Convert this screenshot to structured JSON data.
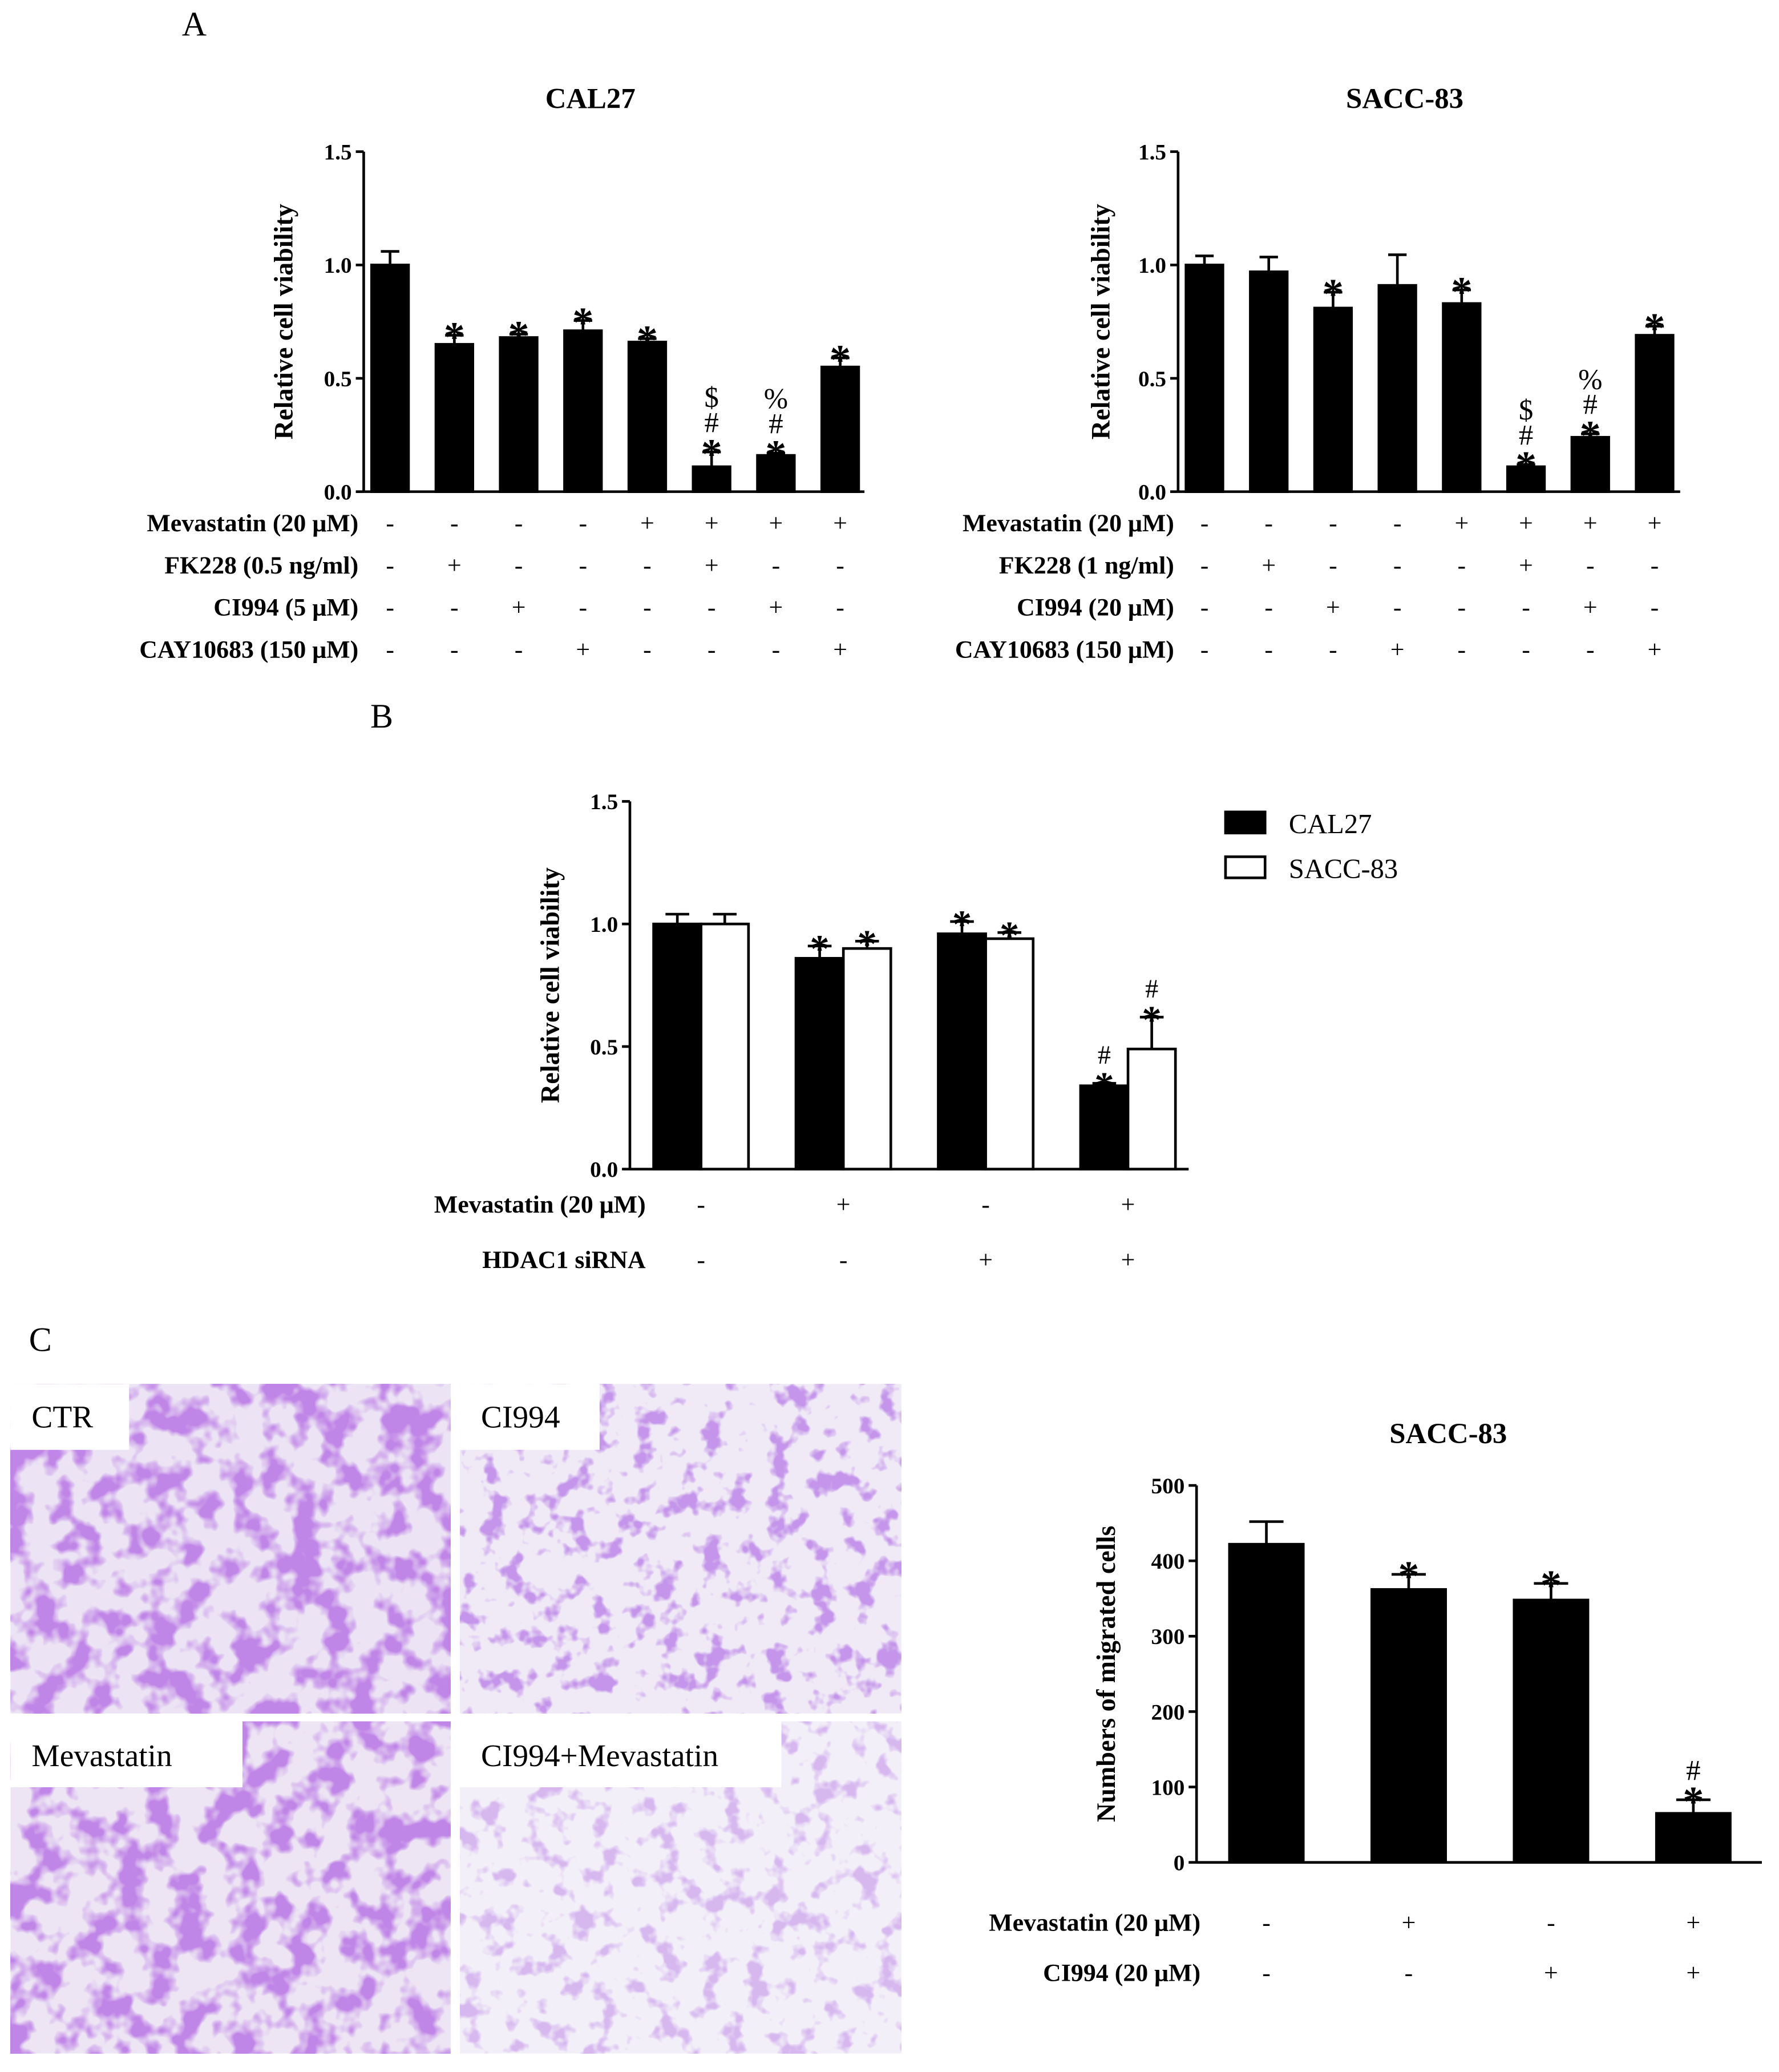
{
  "panels": {
    "a": {
      "letter": "A"
    },
    "b": {
      "letter": "B"
    },
    "c": {
      "letter": "C"
    }
  },
  "chart_data": [
    {
      "id": "A1",
      "type": "bar",
      "title": "CAL27",
      "xlabel": "",
      "ylabel": "Relative cell viability",
      "ylim": [
        0,
        1.5
      ],
      "yticks": [
        "0.0",
        "0.5",
        "1.0",
        "1.5"
      ],
      "values": [
        1.0,
        0.65,
        0.68,
        0.71,
        0.66,
        0.11,
        0.16,
        0.55
      ],
      "errors": [
        0.06,
        0.04,
        0.015,
        0.045,
        0.015,
        0.065,
        0.01,
        0.04
      ],
      "annotations": [
        [],
        [
          "*"
        ],
        [
          "*"
        ],
        [
          "*"
        ],
        [
          "*"
        ],
        [
          "*",
          "#",
          "$"
        ],
        [
          "*",
          "#",
          "%"
        ],
        [
          "*"
        ]
      ],
      "conditions": [
        {
          "label": "Mevastatin (20 μM)",
          "marks": [
            "-",
            "-",
            "-",
            "-",
            "+",
            "+",
            "+",
            "+"
          ]
        },
        {
          "label": "FK228 (0.5 ng/ml)",
          "marks": [
            "-",
            "+",
            "-",
            "-",
            "-",
            "+",
            "-",
            "-"
          ]
        },
        {
          "label": "CI994 (5 μM)",
          "marks": [
            "-",
            "-",
            "+",
            "-",
            "-",
            "-",
            "+",
            "-"
          ]
        },
        {
          "label": "CAY10683 (150 μM)",
          "marks": [
            "-",
            "-",
            "-",
            "+",
            "-",
            "-",
            "-",
            "+"
          ]
        }
      ]
    },
    {
      "id": "A2",
      "type": "bar",
      "title": "SACC-83",
      "xlabel": "",
      "ylabel": "Relative cell viability",
      "ylim": [
        0,
        1.5
      ],
      "yticks": [
        "0.0",
        "0.5",
        "1.0",
        "1.5"
      ],
      "values": [
        1.0,
        0.97,
        0.81,
        0.91,
        0.83,
        0.11,
        0.24,
        0.69
      ],
      "errors": [
        0.04,
        0.065,
        0.07,
        0.135,
        0.06,
        0.01,
        0.015,
        0.04
      ],
      "annotations": [
        [],
        [],
        [
          "*"
        ],
        [],
        [
          "*"
        ],
        [
          "*",
          "#",
          "$"
        ],
        [
          "*",
          "#",
          "%"
        ],
        [
          "*"
        ]
      ],
      "conditions": [
        {
          "label": "Mevastatin (20 μM)",
          "marks": [
            "-",
            "-",
            "-",
            "-",
            "+",
            "+",
            "+",
            "+"
          ]
        },
        {
          "label": "FK228 (1 ng/ml)",
          "marks": [
            "-",
            "+",
            "-",
            "-",
            "-",
            "+",
            "-",
            "-"
          ]
        },
        {
          "label": "CI994 (20 μM)",
          "marks": [
            "-",
            "-",
            "+",
            "-",
            "-",
            "-",
            "+",
            "-"
          ]
        },
        {
          "label": "CAY10683 (150 μM)",
          "marks": [
            "-",
            "-",
            "-",
            "+",
            "-",
            "-",
            "-",
            "+"
          ]
        }
      ]
    },
    {
      "id": "B",
      "type": "bar",
      "title": "",
      "xlabel": "",
      "ylabel": "Relative cell viability",
      "ylim": [
        0,
        1.5
      ],
      "yticks": [
        "0.0",
        "0.5",
        "1.0",
        "1.5"
      ],
      "legend": "top-right",
      "series": [
        {
          "name": "CAL27",
          "fill": "#000000",
          "values": [
            1.0,
            0.86,
            0.96,
            0.34
          ],
          "errors": [
            0.04,
            0.05,
            0.05,
            0.01
          ],
          "annotations": [
            [],
            [
              "*"
            ],
            [
              "*"
            ],
            [
              "*",
              "#"
            ]
          ]
        },
        {
          "name": "SACC-83",
          "fill": "#ffffff",
          "values": [
            1.0,
            0.9,
            0.94,
            0.49
          ],
          "errors": [
            0.04,
            0.03,
            0.025,
            0.13
          ],
          "annotations": [
            [],
            [
              "*"
            ],
            [
              "*"
            ],
            [
              "*",
              "#"
            ]
          ]
        }
      ],
      "conditions": [
        {
          "label": "Mevastatin (20 μM)",
          "marks": [
            "-",
            "+",
            "-",
            "+"
          ]
        },
        {
          "label": "HDAC1 siRNA",
          "marks": [
            "-",
            "-",
            "+",
            "+"
          ]
        }
      ]
    },
    {
      "id": "C",
      "type": "bar",
      "title": "SACC-83",
      "xlabel": "",
      "ylabel": "Numbers of migrated cells",
      "ylim": [
        0,
        500
      ],
      "yticks": [
        "0",
        "100",
        "200",
        "300",
        "400",
        "500"
      ],
      "values": [
        422,
        362,
        348,
        65
      ],
      "errors": [
        30,
        20,
        22,
        18
      ],
      "annotations": [
        [],
        [
          "*"
        ],
        [
          "*"
        ],
        [
          "*",
          "#"
        ]
      ],
      "conditions": [
        {
          "label": "Mevastatin (20 μM)",
          "marks": [
            "-",
            "+",
            "-",
            "+"
          ]
        },
        {
          "label": "CI994 (20 μM)",
          "marks": [
            "-",
            "-",
            "+",
            "+"
          ]
        }
      ]
    }
  ],
  "images": [
    {
      "label": "CTR"
    },
    {
      "label": "CI994"
    },
    {
      "label": "Mevastatin"
    },
    {
      "label": "CI994+Mevastatin"
    }
  ]
}
